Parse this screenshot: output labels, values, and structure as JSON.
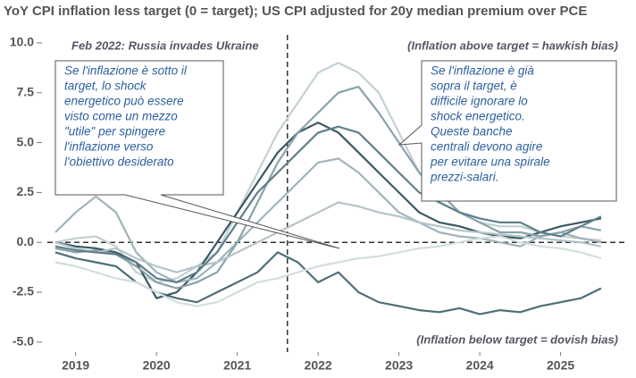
{
  "chart_data": {
    "type": "line",
    "title": "YoY CPI inflation less target (0 = target); US CPI adjusted for 20y median premium over PCE",
    "annotations": {
      "event_label": "Feb 2022: Russia invades Ukraine",
      "above_label": "(Inflation above target = hawkish bias)",
      "below_label": "(Inflation below target = dovish bias)",
      "event_x": 2022.12,
      "reference_y": 0
    },
    "callouts": [
      {
        "lines": [
          "Se l'inflazione è sotto il",
          "target, lo shock",
          "energetico può essere",
          "visto come un mezzo",
          "\"utile\" per spingere",
          "l'inflazione verso",
          "l'obiettivo desiderato"
        ]
      },
      {
        "lines": [
          "Se l'inflazione è già",
          "sopra il target, è",
          "difficile ignorare lo",
          "shock energetico.",
          "Queste banche",
          "centrali devono agire",
          "per evitare una spirale",
          "prezzi-salari."
        ]
      }
    ],
    "x": [
      2019.25,
      2019.5,
      2019.75,
      2020.0,
      2020.25,
      2020.5,
      2020.75,
      2021.0,
      2021.25,
      2021.5,
      2021.75,
      2022.0,
      2022.25,
      2022.5,
      2022.75,
      2023.0,
      2023.25,
      2023.5,
      2023.75,
      2024.0,
      2024.25,
      2024.5,
      2024.75,
      2025.0,
      2025.25,
      2025.5,
      2025.75,
      2026.0
    ],
    "xlim": [
      2019.15,
      2026.3
    ],
    "xticks": [
      {
        "value": 2019.5,
        "label": "2019"
      },
      {
        "value": 2020.5,
        "label": "2020"
      },
      {
        "value": 2021.5,
        "label": "2021"
      },
      {
        "value": 2022.5,
        "label": "2022"
      },
      {
        "value": 2023.5,
        "label": "2023"
      },
      {
        "value": 2024.5,
        "label": "2024"
      },
      {
        "value": 2025.5,
        "label": "2025"
      }
    ],
    "ylim": [
      -5.5,
      10.4
    ],
    "yticks": [
      {
        "value": 10,
        "label": "10.0"
      },
      7.5,
      {
        "value": 5,
        "label": "5.0"
      },
      2.5,
      {
        "value": 0,
        "label": "0.0"
      },
      -2.5,
      {
        "value": -5,
        "label": "-5.0"
      }
    ],
    "series": [
      {
        "color": "#c3d0d4",
        "values": [
          0,
          0.2,
          0.3,
          -0.2,
          -1.5,
          -2,
          -1.8,
          -1.2,
          -0.5,
          1.5,
          3.5,
          5.5,
          7,
          8.5,
          9,
          8.5,
          7.5,
          5.5,
          3.5,
          2,
          1.5,
          1,
          0.8,
          0.8,
          0.5,
          0.3,
          0.2,
          0.1
        ]
      },
      {
        "color": "#4f6d78",
        "values": [
          -0.5,
          -0.8,
          -1,
          -1.2,
          -2,
          -2.5,
          -2.8,
          -3,
          -2.5,
          -2,
          -1.5,
          -0.5,
          -1,
          -2,
          -1.5,
          -2.5,
          -3,
          -3.2,
          -3.4,
          -3.5,
          -3.3,
          -3.6,
          -3.4,
          -3.5,
          -3.2,
          -3,
          -2.8,
          -2.3
        ]
      },
      {
        "color": "#3b5864",
        "values": [
          0,
          -0.2,
          -0.3,
          -0.5,
          -1,
          -2.8,
          -2.5,
          -1.5,
          0,
          1.5,
          3,
          4.5,
          5.5,
          6,
          5.5,
          4.5,
          3.5,
          2.5,
          1.5,
          1,
          0.8,
          0.5,
          0.3,
          0.2,
          0.5,
          0.8,
          1,
          1.2
        ]
      },
      {
        "color": "#9fb3ba",
        "values": [
          0.5,
          1.5,
          2.3,
          1.5,
          -0.5,
          -1.5,
          -2,
          -1.8,
          -1,
          0,
          1,
          2,
          3,
          4,
          4.2,
          3.5,
          2.5,
          1.5,
          1,
          0.5,
          0.3,
          0.2,
          0,
          -0.2,
          0.3,
          0.5,
          0.2,
          0
        ]
      },
      {
        "color": "#8aa2ab",
        "values": [
          -0.3,
          -0.5,
          -0.4,
          -0.6,
          -1.2,
          -2,
          -2.3,
          -2,
          -1.5,
          0,
          2,
          4,
          5.5,
          6.5,
          7.5,
          7.8,
          6.5,
          5,
          3.5,
          2.5,
          1.5,
          1,
          0.5,
          0.5,
          0.3,
          0.5,
          0.8,
          0.6
        ]
      },
      {
        "color": "#d3dde0",
        "values": [
          -1,
          -1.2,
          -1.5,
          -1.8,
          -2,
          -2.5,
          -3,
          -3.2,
          -3,
          -2.5,
          -2,
          -1.8,
          -1.5,
          -1.2,
          -1,
          -0.8,
          -0.7,
          -0.5,
          -0.3,
          -0.2,
          0,
          0.2,
          0.3,
          0,
          -0.2,
          -0.3,
          -0.5,
          -0.8
        ]
      },
      {
        "color": "#b4c4c9",
        "values": [
          0,
          -0.3,
          -0.5,
          -0.3,
          -0.8,
          -1.2,
          -1.5,
          -1.2,
          -1,
          -0.5,
          0,
          0.5,
          1,
          1.5,
          2,
          1.8,
          1.5,
          1.3,
          1,
          0.8,
          0.6,
          0.5,
          0.4,
          0.3,
          0.2,
          0.1,
          0,
          -0.2
        ]
      },
      {
        "color": "#5f7f8a",
        "values": [
          -0.2,
          -0.4,
          -0.5,
          -0.6,
          -1,
          -1.8,
          -2,
          -1.5,
          -0.5,
          1,
          2.5,
          3.5,
          4.5,
          5.5,
          5.8,
          5.5,
          4.5,
          3.5,
          2.5,
          2,
          1.5,
          1.2,
          1,
          1,
          0.5,
          0.3,
          0.8,
          1.3
        ]
      }
    ]
  }
}
